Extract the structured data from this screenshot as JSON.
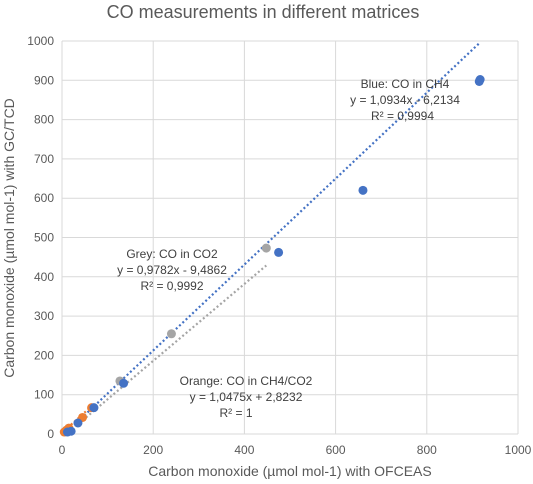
{
  "chart_data": {
    "type": "scatter",
    "title": "CO measurements in different matrices",
    "xlabel": "Carbon monoxide (µmol mol-1) with OFCEAS",
    "ylabel": "Carbon monoxide (µmol mol-1) with GC/TCD",
    "xlim": [
      0,
      1000
    ],
    "ylim": [
      0,
      1000
    ],
    "x_ticks": [
      "0",
      "200",
      "400",
      "600",
      "800",
      "1000"
    ],
    "y_ticks": [
      "0",
      "100",
      "200",
      "300",
      "400",
      "500",
      "600",
      "700",
      "800",
      "900",
      "1000"
    ],
    "grid": true,
    "series": [
      {
        "color": "#4472c4",
        "points": [
          [
            12,
            5
          ],
          [
            20,
            7
          ],
          [
            35,
            28
          ],
          [
            70,
            67
          ],
          [
            135,
            129
          ],
          [
            475,
            462
          ],
          [
            660,
            620
          ],
          [
            915,
            897
          ],
          [
            917,
            902
          ]
        ],
        "trendline": {
          "slope": 1.0934,
          "intercept": -6.2134,
          "x_range": [
            20,
            917
          ]
        }
      },
      {
        "color": "#a5a5a5",
        "points": [
          [
            127,
            135
          ],
          [
            240,
            255
          ],
          [
            448,
            473
          ]
        ],
        "trendline": {
          "slope": 0.9782,
          "intercept": -9.4862,
          "x_range": [
            30,
            448
          ]
        }
      },
      {
        "color": "#ed7d31",
        "points": [
          [
            5,
            5
          ],
          [
            10,
            10
          ],
          [
            15,
            15
          ],
          [
            45,
            42
          ],
          [
            65,
            67
          ]
        ],
        "trendline": {
          "slope": 1.0475,
          "intercept": 2.8232,
          "x_range": [
            5,
            70
          ]
        }
      }
    ],
    "annotations": [
      {
        "id": "blue",
        "lines": [
          "Blue: CO in CH4",
          "y = 1,0934x - 6,2134",
          "R² = 0,9994"
        ]
      },
      {
        "id": "grey",
        "lines": [
          "Grey: CO in CO2",
          "y = 0,9782x - 9,4862",
          "R² = 0,9992"
        ]
      },
      {
        "id": "orange",
        "lines": [
          "Orange: CO in CH4/CO2",
          "y = 1,0475x + 2,8232",
          "R² = 1"
        ]
      }
    ]
  }
}
